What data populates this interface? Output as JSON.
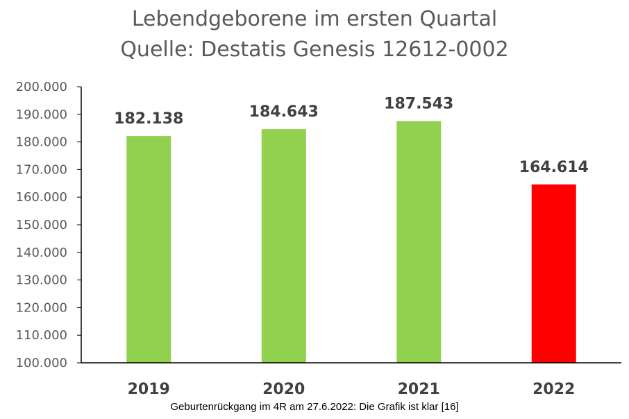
{
  "chart_data": {
    "type": "bar",
    "title": "Lebendgeborene im ersten Quartal",
    "subtitle": "Quelle: Destatis Genesis 12612-0002",
    "categories": [
      "2019",
      "2020",
      "2021",
      "2022"
    ],
    "values": [
      182138,
      184643,
      187543,
      164614
    ],
    "data_labels": [
      "182.138",
      "184.643",
      "187.543",
      "164.614"
    ],
    "bar_colors": [
      "#92d050",
      "#92d050",
      "#92d050",
      "#ff0000"
    ],
    "ylim": [
      100000,
      200000
    ],
    "ytick_step": 10000,
    "ytick_labels": [
      "100.000",
      "110.000",
      "120.000",
      "130.000",
      "140.000",
      "150.000",
      "160.000",
      "170.000",
      "180.000",
      "190.000",
      "200.000"
    ],
    "xlabel": "",
    "ylabel": "",
    "grid": false,
    "legend": "none"
  },
  "caption": "Geburtenrückgang im 4R am 27.6.2022: Die Grafik ist klar [16]",
  "colors": {
    "axis": "#000000",
    "text": "#404040",
    "title": "#595959"
  }
}
